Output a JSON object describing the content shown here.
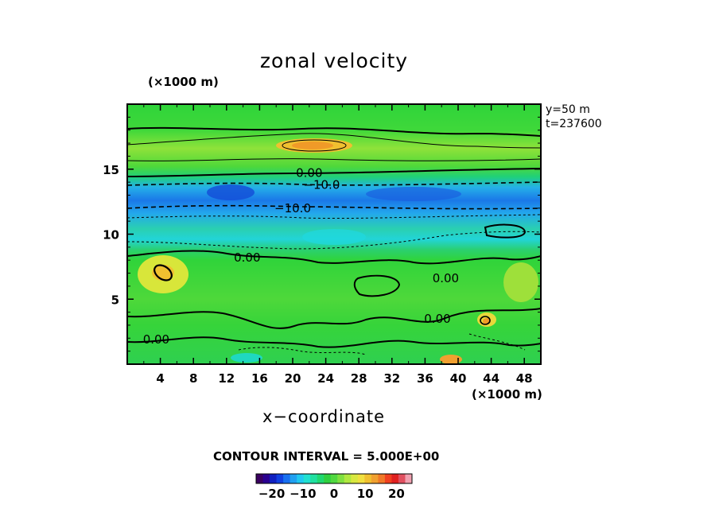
{
  "chart_data": {
    "type": "heatmap",
    "title": "zonal velocity",
    "xlabel": "x−coordinate",
    "x_unit": "(×1000 m)",
    "y_unit": "(×1000 m)",
    "xlim": [
      0,
      50
    ],
    "ylim": [
      0,
      20
    ],
    "x_ticks": [
      4,
      8,
      12,
      16,
      20,
      24,
      28,
      32,
      36,
      40,
      44,
      48
    ],
    "y_ticks": [
      5,
      10,
      15
    ],
    "annotation_lines": [
      "y=50  m",
      "t=237600"
    ],
    "contour_interval_text": "CONTOUR INTERVAL = 5.000E+00",
    "contour_labels": [
      {
        "text": "0.00",
        "x": 22,
        "y": 14.7
      },
      {
        "text": "−10.0",
        "x": 23.5,
        "y": 13.8
      },
      {
        "text": "−10.0",
        "x": 20,
        "y": 12
      },
      {
        "text": "0.00",
        "x": 14.5,
        "y": 8.2
      },
      {
        "text": "0.00",
        "x": 38.5,
        "y": 6.6
      },
      {
        "text": "0.00",
        "x": 37.5,
        "y": 3.5
      },
      {
        "text": "0.00",
        "x": 3.5,
        "y": 1.9
      }
    ],
    "colorbar": {
      "ticks": [
        "−20",
        "−10",
        "0",
        "10",
        "20"
      ],
      "tick_values": [
        -20,
        -10,
        0,
        10,
        20
      ],
      "range": [
        -25,
        25
      ]
    },
    "colors": {
      "background_field": "#2ad42a",
      "negative_core": "#1d6fe0",
      "positive_max": "#f0a030"
    }
  }
}
